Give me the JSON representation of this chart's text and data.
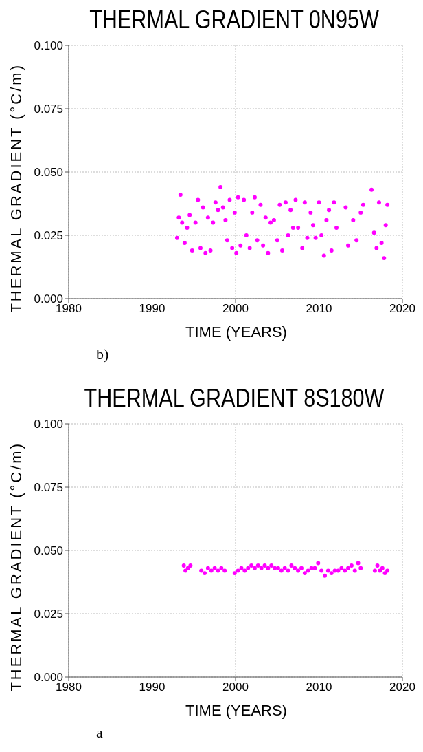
{
  "chart_data": [
    {
      "type": "scatter",
      "title": "THERMAL GRADIENT 0N95W",
      "xlabel": "TIME (YEARS)",
      "ylabel": "THERMAL GRADIENT (°C/m)",
      "annotations": [
        "b)"
      ],
      "xlim": [
        1980,
        2020
      ],
      "xticks": [
        1980,
        1990,
        2000,
        2010,
        2020
      ],
      "ylim": [
        0,
        0.1
      ],
      "yticks": [
        {
          "value": 0,
          "label": "0.000"
        },
        {
          "value": 0.025,
          "label": "0.025"
        },
        {
          "value": 0.05,
          "label": "0.050"
        },
        {
          "value": 0.075,
          "label": "0.075"
        },
        {
          "value": 0.1,
          "label": "0.100"
        }
      ],
      "grid": true,
      "marker": "circle",
      "series": [
        {
          "color": "#ff00ff",
          "x": [
            1993.0,
            1993.2,
            1993.4,
            1993.6,
            1993.9,
            1994.2,
            1994.5,
            1994.8,
            1995.2,
            1995.5,
            1995.8,
            1996.1,
            1996.4,
            1996.7,
            1997.0,
            1997.3,
            1997.6,
            1997.9,
            1998.2,
            1998.5,
            1998.8,
            1999.0,
            1999.3,
            1999.6,
            1999.9,
            2000.1,
            2000.3,
            2000.6,
            2001.0,
            2001.3,
            2001.7,
            2002.0,
            2002.3,
            2002.6,
            2003.0,
            2003.3,
            2003.6,
            2003.9,
            2004.2,
            2004.6,
            2005.0,
            2005.3,
            2005.6,
            2006.0,
            2006.3,
            2006.6,
            2006.9,
            2007.2,
            2007.5,
            2008.0,
            2008.3,
            2008.6,
            2009.0,
            2009.3,
            2009.6,
            2010.0,
            2010.3,
            2010.6,
            2010.9,
            2011.2,
            2011.5,
            2011.8,
            2012.1,
            2013.2,
            2013.5,
            2014.1,
            2014.5,
            2015.0,
            2015.3,
            2016.3,
            2016.6,
            2016.9,
            2017.2,
            2017.5,
            2017.8,
            2018.0,
            2018.2
          ],
          "values": [
            0.024,
            0.032,
            0.041,
            0.03,
            0.022,
            0.028,
            0.033,
            0.019,
            0.03,
            0.039,
            0.02,
            0.036,
            0.018,
            0.032,
            0.019,
            0.03,
            0.038,
            0.035,
            0.044,
            0.036,
            0.031,
            0.023,
            0.039,
            0.02,
            0.034,
            0.018,
            0.04,
            0.021,
            0.039,
            0.025,
            0.02,
            0.034,
            0.04,
            0.023,
            0.037,
            0.021,
            0.032,
            0.018,
            0.03,
            0.031,
            0.023,
            0.037,
            0.019,
            0.038,
            0.025,
            0.035,
            0.028,
            0.039,
            0.028,
            0.02,
            0.038,
            0.024,
            0.034,
            0.029,
            0.024,
            0.038,
            0.025,
            0.017,
            0.031,
            0.035,
            0.019,
            0.038,
            0.028,
            0.036,
            0.021,
            0.031,
            0.023,
            0.034,
            0.037,
            0.043,
            0.026,
            0.02,
            0.038,
            0.022,
            0.016,
            0.029,
            0.037
          ]
        }
      ]
    },
    {
      "type": "scatter",
      "title": "THERMAL GRADIENT 8S180W",
      "xlabel": "TIME (YEARS)",
      "ylabel": "THERMAL GRADIENT (°C/m)",
      "annotations": [
        "a"
      ],
      "xlim": [
        1980,
        2020
      ],
      "xticks": [
        1980,
        1990,
        2000,
        2010,
        2020
      ],
      "ylim": [
        0,
        0.1
      ],
      "yticks": [
        {
          "value": 0,
          "label": "0.000"
        },
        {
          "value": 0.025,
          "label": "0.025"
        },
        {
          "value": 0.05,
          "label": "0.050"
        },
        {
          "value": 0.075,
          "label": "0.075"
        },
        {
          "value": 0.1,
          "label": "0.100"
        }
      ],
      "grid": true,
      "marker": "circle",
      "series": [
        {
          "color": "#ff00ff",
          "x": [
            1993.8,
            1994.0,
            1994.3,
            1994.6,
            1995.9,
            1996.3,
            1996.7,
            1997.1,
            1997.5,
            1997.9,
            1998.3,
            1998.7,
            1999.9,
            2000.3,
            2000.7,
            2001.1,
            2001.5,
            2001.9,
            2002.3,
            2002.7,
            2003.1,
            2003.5,
            2003.9,
            2004.3,
            2004.7,
            2005.1,
            2005.5,
            2005.9,
            2006.3,
            2006.7,
            2007.1,
            2007.5,
            2007.9,
            2008.3,
            2008.7,
            2009.1,
            2009.5,
            2009.9,
            2010.3,
            2010.7,
            2011.1,
            2011.5,
            2011.9,
            2012.3,
            2012.7,
            2013.1,
            2013.5,
            2013.9,
            2014.3,
            2014.7,
            2015.0,
            2016.7,
            2017.0,
            2017.3,
            2017.6,
            2017.9,
            2018.2
          ],
          "values": [
            0.044,
            0.042,
            0.043,
            0.044,
            0.042,
            0.041,
            0.043,
            0.042,
            0.043,
            0.042,
            0.043,
            0.042,
            0.041,
            0.042,
            0.043,
            0.042,
            0.043,
            0.044,
            0.043,
            0.044,
            0.043,
            0.044,
            0.043,
            0.044,
            0.043,
            0.043,
            0.042,
            0.043,
            0.042,
            0.044,
            0.043,
            0.042,
            0.043,
            0.041,
            0.042,
            0.043,
            0.043,
            0.045,
            0.042,
            0.04,
            0.042,
            0.041,
            0.042,
            0.042,
            0.043,
            0.042,
            0.043,
            0.044,
            0.042,
            0.045,
            0.043,
            0.042,
            0.044,
            0.042,
            0.043,
            0.041,
            0.042
          ]
        }
      ]
    }
  ]
}
